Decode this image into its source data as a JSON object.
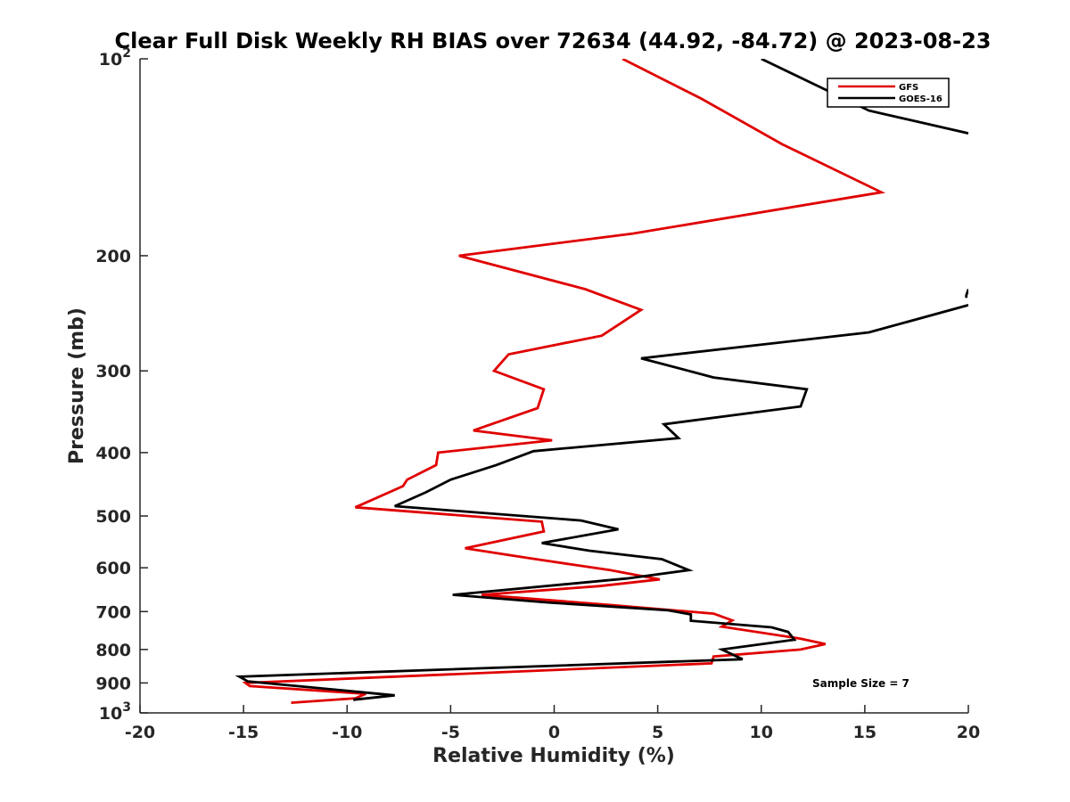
{
  "chart_data": {
    "type": "line",
    "title": "Clear Full Disk Weekly RH BIAS over 72634 (44.92, -84.72) @ 2023-08-23",
    "xlabel": "Relative Humidity (%)",
    "ylabel": "Pressure (mb)",
    "xlim": [
      -20,
      20
    ],
    "ylim": [
      100,
      1000
    ],
    "yscale": "log",
    "y_reversed": true,
    "x_ticks": [
      -20,
      -15,
      -10,
      -5,
      0,
      5,
      10,
      15,
      20
    ],
    "x_tick_labels": [
      "-20",
      "-15",
      "-10",
      "-5",
      "0",
      "5",
      "10",
      "15",
      "20"
    ],
    "y_ticks": [
      100,
      200,
      300,
      400,
      500,
      600,
      700,
      800,
      900,
      1000
    ],
    "y_tick_labels": [
      {
        "base": "10",
        "exp": "2"
      },
      {
        "base": "200",
        "exp": ""
      },
      {
        "base": "300",
        "exp": ""
      },
      {
        "base": "400",
        "exp": ""
      },
      {
        "base": "500",
        "exp": ""
      },
      {
        "base": "600",
        "exp": ""
      },
      {
        "base": "700",
        "exp": ""
      },
      {
        "base": "800",
        "exp": ""
      },
      {
        "base": "900",
        "exp": ""
      },
      {
        "base": "10",
        "exp": "3"
      }
    ],
    "legend": {
      "position": "top-right",
      "entries": [
        "GFS",
        "GOES-16"
      ]
    },
    "annotation": "Sample Size = 7",
    "series": [
      {
        "name": "GFS",
        "color": "#e00000",
        "points": [
          [
            3.3,
            100
          ],
          [
            7.1,
            115
          ],
          [
            11.0,
            135
          ],
          [
            15.8,
            160
          ],
          [
            3.8,
            185
          ],
          [
            -4.6,
            200
          ],
          [
            1.5,
            225
          ],
          [
            4.2,
            242
          ],
          [
            2.3,
            265
          ],
          [
            -2.2,
            283
          ],
          [
            -2.9,
            300
          ],
          [
            -0.5,
            320
          ],
          [
            -0.8,
            342
          ],
          [
            -3.9,
            370
          ],
          [
            -0.1,
            383
          ],
          [
            -5.6,
            400
          ],
          [
            -5.7,
            418
          ],
          [
            -7.1,
            440
          ],
          [
            -7.3,
            450
          ],
          [
            -9.6,
            485
          ],
          [
            -0.6,
            510
          ],
          [
            -0.5,
            528
          ],
          [
            -4.3,
            560
          ],
          [
            -1.2,
            580
          ],
          [
            2.7,
            605
          ],
          [
            5.1,
            625
          ],
          [
            2.2,
            640
          ],
          [
            -3.5,
            660
          ],
          [
            2.5,
            683
          ],
          [
            7.7,
            705
          ],
          [
            8.6,
            722
          ],
          [
            8.1,
            738
          ],
          [
            11.9,
            770
          ],
          [
            13.1,
            785
          ],
          [
            11.9,
            800
          ],
          [
            7.7,
            820
          ],
          [
            7.6,
            840
          ],
          [
            -14.9,
            900
          ],
          [
            -14.7,
            910
          ],
          [
            -9.1,
            935
          ],
          [
            -9.6,
            950
          ],
          [
            -12.7,
            965
          ]
        ]
      },
      {
        "name": "GOES-16",
        "color": "#000000",
        "segments": [
          [
            [
              10.0,
              100
            ],
            [
              15.2,
              120
            ],
            [
              20.0,
              130
            ]
          ],
          [
            [
              20.0,
              225
            ],
            [
              19.9,
              230
            ],
            [
              19.9,
              232
            ]
          ],
          [
            [
              20.0,
              238
            ],
            [
              15.2,
              262
            ],
            [
              4.2,
              287
            ],
            [
              7.7,
              307
            ],
            [
              12.2,
              320
            ],
            [
              11.9,
              340
            ],
            [
              5.3,
              362
            ],
            [
              6.0,
              380
            ],
            [
              -1.0,
              398
            ],
            [
              -2.8,
              418
            ],
            [
              -5.0,
              440
            ],
            [
              -6.2,
              460
            ],
            [
              -7.7,
              483
            ],
            [
              1.3,
              508
            ],
            [
              3.1,
              524
            ],
            [
              -0.6,
              550
            ],
            [
              1.7,
              565
            ],
            [
              5.2,
              582
            ],
            [
              6.5,
              605
            ],
            [
              3.5,
              623
            ],
            [
              -4.9,
              660
            ],
            [
              -0.3,
              678
            ],
            [
              5.5,
              697
            ],
            [
              6.6,
              707
            ],
            [
              6.6,
              723
            ],
            [
              10.5,
              740
            ],
            [
              11.3,
              752
            ],
            [
              11.6,
              773
            ],
            [
              8.1,
              800
            ],
            [
              9.1,
              828
            ],
            [
              -15.2,
              880
            ],
            [
              -14.8,
              895
            ],
            [
              -7.7,
              940
            ],
            [
              -9.7,
              955
            ]
          ]
        ]
      }
    ]
  }
}
